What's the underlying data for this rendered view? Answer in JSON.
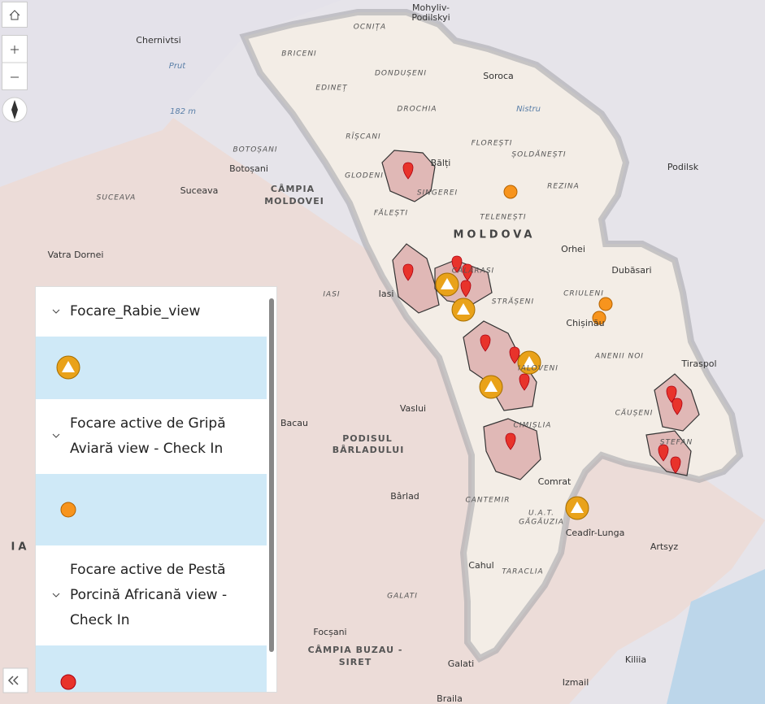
{
  "map": {
    "labels": [
      "Mohyliv-",
      "Podilskyi",
      "Chernivtsi",
      "OCNIȚA",
      "BRICENI",
      "DONDUȘENI",
      "EDINEȚ",
      "Soroca",
      "DROCHIA",
      "Nistru",
      "Prut",
      "182 m",
      "RÎȘCANI",
      "FLOREȘTI",
      "ȘOLDĂNEȘTI",
      "BOTOȘANI",
      "Botoșani",
      "Bălți",
      "GLODENI",
      "Podilsk",
      "SINGEREI",
      "REZINA",
      "SUCEAVA",
      "Suceava",
      "CÂMPIA",
      "MOLDOVEI",
      "FĂLEȘTI",
      "TELENEȘTI",
      "MOLDOVA",
      "Orhei",
      "Vatra Dornei",
      "Dubăsari",
      "CĂLĂRAȘI",
      "IASI",
      "Iasi",
      "CRIULENI",
      "STRĂȘENI",
      "Chișinău",
      "ANENII NOI",
      "Tiraspol",
      "IALOVENI",
      "Vaslui",
      "CĂUȘENI",
      "Bacau",
      "PODISUL",
      "BÂRLADULUI",
      "CIMIȘLIA",
      "ȘTEFAN",
      "Comrat",
      "Bârlad",
      "CANTEMIR",
      "U.A.T.",
      "GĂGĂUZIA",
      "Ceadîr-Lunga",
      "Artsyz",
      "Cahul",
      "TARACLIA",
      "GALATI",
      "Focșani",
      "CÂMPIA BUZAU -",
      "SIRET",
      "Galati",
      "Kiliia",
      "Izmail",
      "Braila",
      "IA"
    ]
  },
  "legend": {
    "layers": [
      {
        "title": "Focare_Rabie_view"
      },
      {
        "title": "Focare active de Gripă Aviară view - Check In"
      },
      {
        "title": "Focare active de Pestă Porcină Africană view - Check In"
      }
    ]
  }
}
